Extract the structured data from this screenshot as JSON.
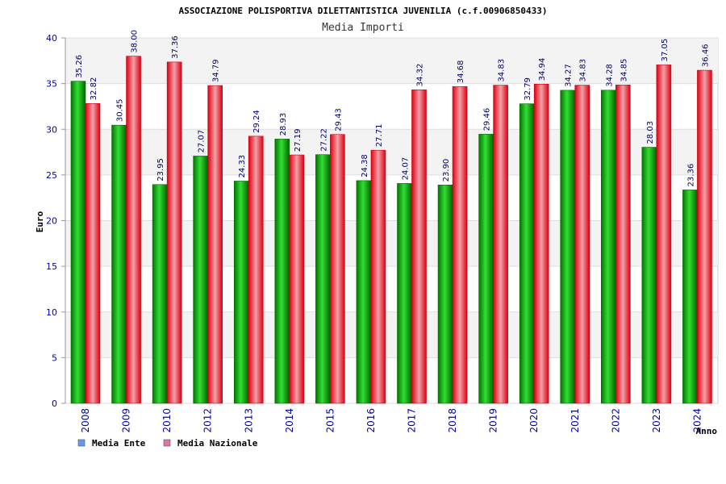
{
  "chart_data": {
    "type": "bar",
    "title": "ASSOCIAZIONE POLISPORTIVA DILETTANTISTICA JUVENILIA (c.f.00906850433)",
    "subtitle": "Media Importi",
    "xlabel": "Anno",
    "ylabel": "Euro",
    "ylim": [
      0,
      40
    ],
    "yticks": [
      "0",
      "5",
      "10",
      "15",
      "20",
      "25",
      "30",
      "35",
      "40"
    ],
    "grid": true,
    "legend_position": "bottom-left",
    "categories": [
      "2008",
      "2009",
      "2010",
      "2012",
      "2013",
      "2014",
      "2015",
      "2016",
      "2017",
      "2018",
      "2019",
      "2020",
      "2021",
      "2022",
      "2023",
      "2024"
    ],
    "series": [
      {
        "name": "Media Ente",
        "color": "#00bb00",
        "legend_color": "#6699ee",
        "values": [
          35.26,
          30.45,
          23.95,
          27.07,
          24.33,
          28.93,
          27.22,
          24.38,
          24.07,
          23.9,
          29.46,
          32.79,
          34.27,
          34.28,
          28.03,
          23.36
        ],
        "labels": [
          "35.26",
          "30.45",
          "23.95",
          "27.07",
          "24.33",
          "28.93",
          "27.22",
          "24.38",
          "24.07",
          "23.90",
          "29.46",
          "32.79",
          "34.27",
          "34.28",
          "28.03",
          "23.36"
        ]
      },
      {
        "name": "Media Nazionale",
        "color": "#ee1122",
        "legend_color": "#dd77aa",
        "values": [
          32.82,
          38.0,
          37.36,
          34.79,
          29.24,
          27.19,
          29.43,
          27.71,
          34.32,
          34.68,
          34.83,
          34.94,
          34.83,
          34.85,
          37.05,
          36.46
        ],
        "labels": [
          "32.82",
          "38.00",
          "37.36",
          "34.79",
          "29.24",
          "27.19",
          "29.43",
          "27.71",
          "34.32",
          "34.68",
          "34.83",
          "34.94",
          "34.83",
          "34.85",
          "37.05",
          "36.46"
        ]
      }
    ]
  }
}
